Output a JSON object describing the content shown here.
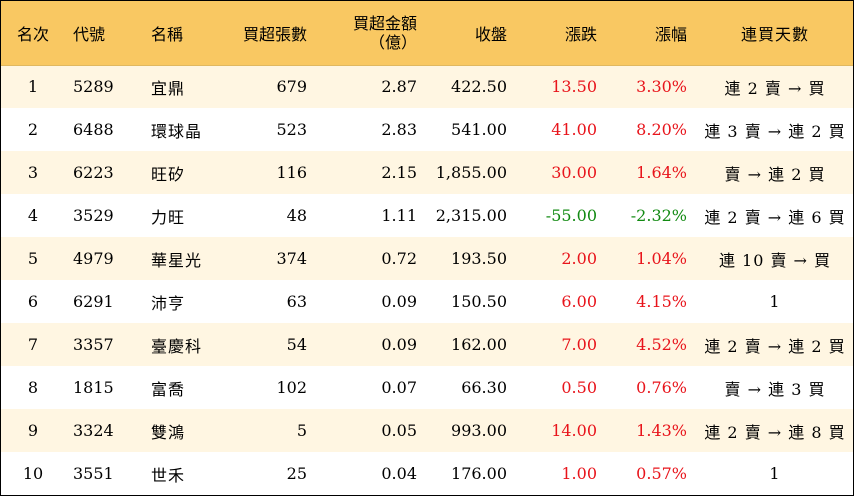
{
  "colors": {
    "header_bg": "#f9c862",
    "row_odd_bg": "#fff6e2",
    "row_even_bg": "#ffffff",
    "up": "#e8141b",
    "down": "#128a12"
  },
  "headers": {
    "rank": "名次",
    "code": "代號",
    "name": "名稱",
    "net_buy_lots": "買超張數",
    "net_buy_amount_line1": "買超金額",
    "net_buy_amount_line2": "（億）",
    "close": "收盤",
    "change": "漲跌",
    "change_pct": "漲幅",
    "streak": "連買天數"
  },
  "rows": [
    {
      "rank": "1",
      "code": "5289",
      "name": "宜鼎",
      "lots": "679",
      "amount": "2.87",
      "close": "422.50",
      "change": "13.50",
      "pct": "3.30%",
      "streak": "連 2 賣 → 買",
      "dir": "up"
    },
    {
      "rank": "2",
      "code": "6488",
      "name": "環球晶",
      "lots": "523",
      "amount": "2.83",
      "close": "541.00",
      "change": "41.00",
      "pct": "8.20%",
      "streak": "連 3 賣 → 連 2 買",
      "dir": "up"
    },
    {
      "rank": "3",
      "code": "6223",
      "name": "旺矽",
      "lots": "116",
      "amount": "2.15",
      "close": "1,855.00",
      "change": "30.00",
      "pct": "1.64%",
      "streak": "賣 → 連 2 買",
      "dir": "up"
    },
    {
      "rank": "4",
      "code": "3529",
      "name": "力旺",
      "lots": "48",
      "amount": "1.11",
      "close": "2,315.00",
      "change": "-55.00",
      "pct": "-2.32%",
      "streak": "連 2 賣 → 連 6 買",
      "dir": "down"
    },
    {
      "rank": "5",
      "code": "4979",
      "name": "華星光",
      "lots": "374",
      "amount": "0.72",
      "close": "193.50",
      "change": "2.00",
      "pct": "1.04%",
      "streak": "連 10 賣 → 買",
      "dir": "up"
    },
    {
      "rank": "6",
      "code": "6291",
      "name": "沛亨",
      "lots": "63",
      "amount": "0.09",
      "close": "150.50",
      "change": "6.00",
      "pct": "4.15%",
      "streak": "1",
      "dir": "up"
    },
    {
      "rank": "7",
      "code": "3357",
      "name": "臺慶科",
      "lots": "54",
      "amount": "0.09",
      "close": "162.00",
      "change": "7.00",
      "pct": "4.52%",
      "streak": "連 2 賣 → 連 2 買",
      "dir": "up"
    },
    {
      "rank": "8",
      "code": "1815",
      "name": "富喬",
      "lots": "102",
      "amount": "0.07",
      "close": "66.30",
      "change": "0.50",
      "pct": "0.76%",
      "streak": "賣 → 連 3 買",
      "dir": "up"
    },
    {
      "rank": "9",
      "code": "3324",
      "name": "雙鴻",
      "lots": "5",
      "amount": "0.05",
      "close": "993.00",
      "change": "14.00",
      "pct": "1.43%",
      "streak": "連 2 賣 → 連 8 買",
      "dir": "up"
    },
    {
      "rank": "10",
      "code": "3551",
      "name": "世禾",
      "lots": "25",
      "amount": "0.04",
      "close": "176.00",
      "change": "1.00",
      "pct": "0.57%",
      "streak": "1",
      "dir": "up"
    }
  ]
}
